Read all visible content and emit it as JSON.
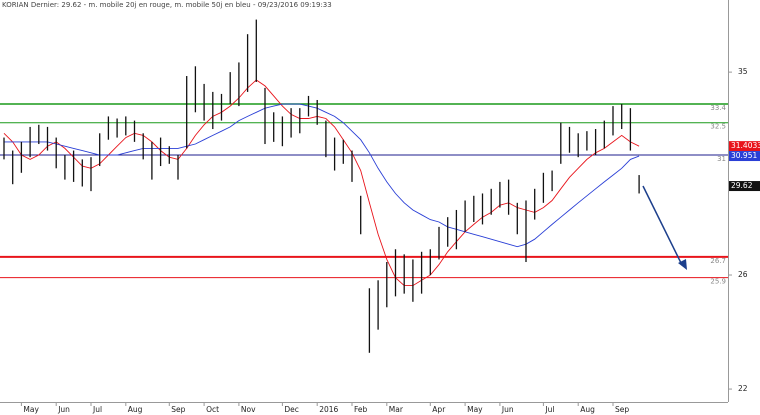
{
  "chart_data": {
    "type": "ohlc",
    "title": "KORIAN Dernier: 29.62 - m. mobile 20j en rouge, m. mobile 50j en bleu - 09/23/2016 09:19:33",
    "categories": [
      null,
      null,
      "May",
      null,
      null,
      null,
      "Jun",
      null,
      null,
      null,
      "Jul",
      null,
      null,
      null,
      "Aug",
      null,
      null,
      null,
      null,
      "Sep",
      null,
      null,
      null,
      "Oct",
      null,
      null,
      null,
      "Nov",
      null,
      null,
      null,
      null,
      "Dec",
      null,
      null,
      null,
      "2016",
      null,
      null,
      null,
      "Feb",
      null,
      null,
      null,
      "Mar",
      null,
      null,
      null,
      null,
      "Apr",
      null,
      null,
      null,
      "May",
      null,
      null,
      null,
      "Jun",
      null,
      null,
      null,
      null,
      "Jul",
      null,
      null,
      null,
      "Aug",
      null,
      null,
      null,
      "Sep",
      null,
      null,
      null
    ],
    "high": [
      31.8,
      31.2,
      31.6,
      32.3,
      32.4,
      32.3,
      31.8,
      31.0,
      31.2,
      30.8,
      30.9,
      32.0,
      32.8,
      32.7,
      32.8,
      32.6,
      32.0,
      31.6,
      31.8,
      31.4,
      31.0,
      34.8,
      35.3,
      34.4,
      34.0,
      33.9,
      35.0,
      35.5,
      37.0,
      37.8,
      34.2,
      33.0,
      32.8,
      33.2,
      33.2,
      33.8,
      33.6,
      32.6,
      31.8,
      31.7,
      31.2,
      29.2,
      25.5,
      25.8,
      26.5,
      27.0,
      26.8,
      26.6,
      26.9,
      27.0,
      27.9,
      28.3,
      28.6,
      29.0,
      29.2,
      29.3,
      29.5,
      29.8,
      29.9,
      28.9,
      29.0,
      29.5,
      30.2,
      30.3,
      32.5,
      32.3,
      32.0,
      32.1,
      32.2,
      32.6,
      33.3,
      33.4,
      33.2,
      30.1
    ],
    "low": [
      30.8,
      29.7,
      30.2,
      30.9,
      31.5,
      31.2,
      30.4,
      29.9,
      29.8,
      29.6,
      29.4,
      30.5,
      31.7,
      31.8,
      31.9,
      31.6,
      30.8,
      29.9,
      30.5,
      30.6,
      29.9,
      31.3,
      33.0,
      32.6,
      32.2,
      32.6,
      33.4,
      33.3,
      34.0,
      34.5,
      31.5,
      31.6,
      31.4,
      31.8,
      32.0,
      32.8,
      32.4,
      30.9,
      30.3,
      30.6,
      29.8,
      27.6,
      23.2,
      24.0,
      24.8,
      25.2,
      25.3,
      25.0,
      25.3,
      26.0,
      26.6,
      27.1,
      27.0,
      27.7,
      28.1,
      28.0,
      28.4,
      28.7,
      28.4,
      27.6,
      26.5,
      28.2,
      28.9,
      29.4,
      30.6,
      31.1,
      30.9,
      31.2,
      31.0,
      31.3,
      31.9,
      32.2,
      31.2,
      29.3
    ],
    "bar_color": "#111111",
    "moving_averages": [
      {
        "color": "#e8141b",
        "values": [
          32.0,
          31.6,
          31.0,
          30.8,
          31.0,
          31.4,
          31.6,
          31.3,
          30.9,
          30.5,
          30.4,
          30.6,
          31.0,
          31.4,
          31.8,
          32.0,
          31.9,
          31.6,
          31.2,
          30.9,
          30.8,
          31.3,
          31.9,
          32.4,
          32.8,
          33.0,
          33.3,
          33.7,
          34.2,
          34.6,
          34.3,
          33.8,
          33.3,
          32.9,
          32.7,
          32.7,
          32.8,
          32.7,
          32.3,
          31.7,
          31.1,
          30.3,
          28.9,
          27.6,
          26.6,
          25.9,
          25.6,
          25.6,
          25.8,
          26.0,
          26.4,
          26.9,
          27.3,
          27.7,
          28.0,
          28.3,
          28.5,
          28.8,
          28.9,
          28.7,
          28.6,
          28.5,
          28.7,
          29.0,
          29.5,
          30.0,
          30.4,
          30.8,
          31.1,
          31.3,
          31.6,
          31.9,
          31.6,
          31.4
        ]
      },
      {
        "color": "#2a3fd6",
        "values": [
          31.6,
          31.6,
          31.6,
          31.6,
          31.6,
          31.6,
          31.5,
          31.4,
          31.3,
          31.2,
          31.1,
          31.0,
          31.0,
          31.0,
          31.1,
          31.2,
          31.3,
          31.3,
          31.3,
          31.3,
          31.3,
          31.4,
          31.5,
          31.7,
          31.9,
          32.1,
          32.3,
          32.6,
          32.8,
          33.0,
          33.2,
          33.3,
          33.4,
          33.4,
          33.4,
          33.3,
          33.2,
          33.0,
          32.8,
          32.5,
          32.1,
          31.7,
          31.1,
          30.4,
          29.8,
          29.3,
          28.9,
          28.6,
          28.4,
          28.2,
          28.1,
          27.9,
          27.8,
          27.7,
          27.6,
          27.5,
          27.4,
          27.3,
          27.2,
          27.1,
          27.2,
          27.4,
          27.7,
          28.0,
          28.3,
          28.6,
          28.9,
          29.2,
          29.5,
          29.8,
          30.1,
          30.4,
          30.8,
          30.95
        ]
      }
    ],
    "levels": [
      {
        "value": 33.4,
        "color": "#1a9a1a",
        "width": 1.5
      },
      {
        "value": 32.5,
        "color": "#1a9a1a",
        "width": 1
      },
      {
        "value": 31,
        "color": "#1c1c8c",
        "width": 1
      },
      {
        "value": 26.7,
        "color": "#e8141b",
        "width": 2
      },
      {
        "value": 25.9,
        "color": "#e8141b",
        "width": 1
      }
    ],
    "last_labels": [
      {
        "value": 31.4033,
        "color": "#e8141b"
      },
      {
        "value": 30.951,
        "color": "#2a3fd6"
      },
      {
        "value": 29.62,
        "color": "#111111"
      }
    ],
    "ylim": [
      21.65,
      38.9
    ],
    "yticks": [
      22,
      26,
      35
    ],
    "log_scale": true
  }
}
